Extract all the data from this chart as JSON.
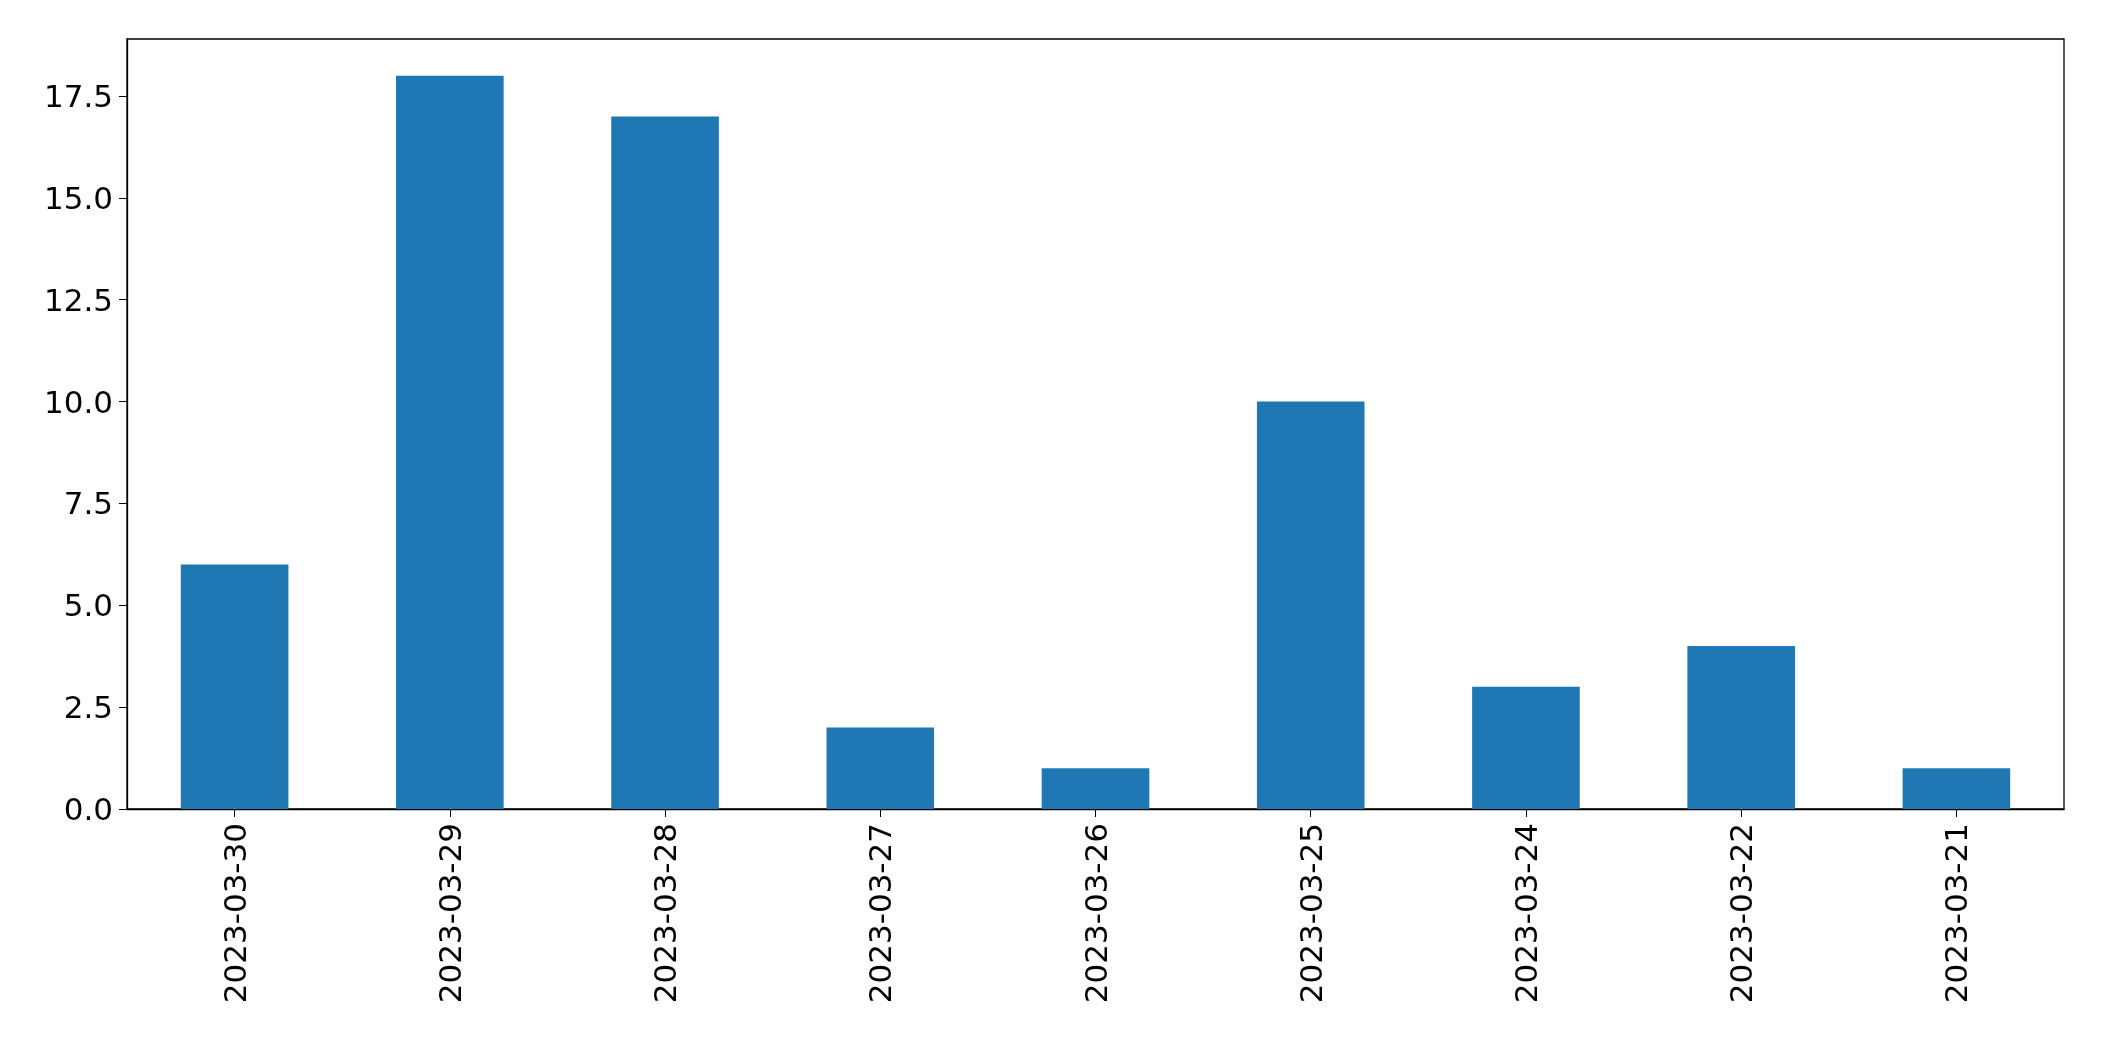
{
  "chart_data": {
    "type": "bar",
    "categories": [
      "2023-03-30",
      "2023-03-29",
      "2023-03-28",
      "2023-03-27",
      "2023-03-26",
      "2023-03-25",
      "2023-03-24",
      "2023-03-22",
      "2023-03-21"
    ],
    "values": [
      6,
      18,
      17,
      2,
      1,
      10,
      3,
      4,
      1
    ],
    "color": "#1f77b4",
    "ylim": [
      0,
      18.9
    ],
    "yticks": [
      {
        "value": 0,
        "label": "0.0"
      },
      {
        "value": 2.5,
        "label": "2.5"
      },
      {
        "value": 5,
        "label": "5.0"
      },
      {
        "value": 7.5,
        "label": "7.5"
      },
      {
        "value": 10,
        "label": "10.0"
      },
      {
        "value": 12.5,
        "label": "12.5"
      },
      {
        "value": 15,
        "label": "15.0"
      },
      {
        "value": 17.5,
        "label": "17.5"
      }
    ],
    "grid": false
  }
}
